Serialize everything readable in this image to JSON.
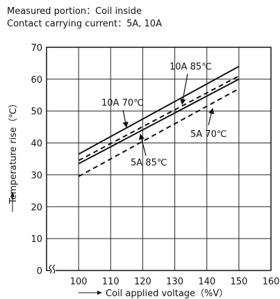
{
  "captions": {
    "measured": "Measured portion：Coil inside",
    "contact": "Contact carrying current：5A, 10A"
  },
  "chart_data": {
    "type": "line",
    "xlabel": "Coil applied voltage（%V）",
    "ylabel": "Temperature rise（℃）",
    "xlim": [
      90,
      160
    ],
    "ylim": [
      0,
      70
    ],
    "x_axis_break": true,
    "grid": true,
    "xticks": [
      100,
      110,
      120,
      130,
      140,
      150,
      160
    ],
    "yticks": [
      0,
      10,
      20,
      30,
      40,
      50,
      60,
      70
    ],
    "series": [
      {
        "name": "10A 70℃",
        "style": "solid",
        "x": [
          100,
          150
        ],
        "y": [
          36.5,
          64
        ]
      },
      {
        "name": "10A 85℃",
        "style": "dashed",
        "x": [
          100,
          150
        ],
        "y": [
          34.5,
          61
        ]
      },
      {
        "name": "5A 70℃",
        "style": "solid",
        "x": [
          100,
          150
        ],
        "y": [
          33.5,
          60
        ]
      },
      {
        "name": "5A 85℃",
        "style": "dashed",
        "x": [
          100,
          150
        ],
        "y": [
          29.5,
          57
        ]
      }
    ]
  }
}
